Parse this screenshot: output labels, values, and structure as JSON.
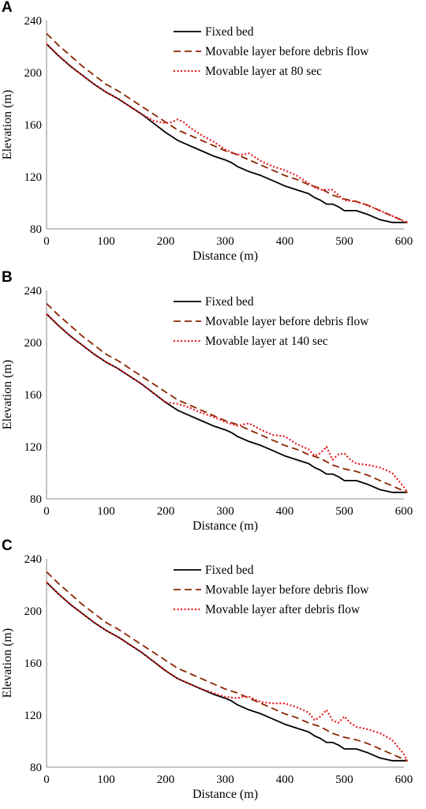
{
  "chart_data": [
    {
      "panel": "A",
      "type": "line",
      "xlabel": "Distance (m)",
      "ylabel": "Elevation (m)",
      "xlim": [
        0,
        600
      ],
      "ylim": [
        80,
        240
      ],
      "xticks": [
        0,
        100,
        200,
        300,
        400,
        500,
        600
      ],
      "yticks": [
        80,
        120,
        160,
        200,
        240
      ],
      "legend_position": "top-right",
      "grid": false,
      "series": [
        {
          "name": "Fixed bed",
          "color": "#000000",
          "style": "solid",
          "x": [
            0,
            20,
            40,
            60,
            80,
            100,
            120,
            140,
            160,
            180,
            200,
            220,
            240,
            260,
            280,
            300,
            310,
            320,
            340,
            360,
            380,
            400,
            420,
            440,
            450,
            460,
            470,
            480,
            490,
            500,
            520,
            540,
            560,
            580,
            600,
            606
          ],
          "y": [
            222,
            213,
            205,
            198,
            191,
            185,
            180,
            174,
            168,
            161,
            154,
            148,
            144,
            140,
            136,
            133,
            131,
            128,
            124,
            121,
            117,
            113,
            110,
            107,
            104,
            102,
            99,
            99,
            97,
            94,
            94,
            91,
            87,
            85,
            85,
            85
          ]
        },
        {
          "name": "Movable layer before debris flow",
          "color": "#8B2500",
          "style": "dashed",
          "x": [
            0,
            20,
            40,
            60,
            80,
            100,
            120,
            140,
            160,
            180,
            200,
            220,
            240,
            260,
            280,
            300,
            320,
            340,
            360,
            380,
            400,
            420,
            440,
            460,
            480,
            500,
            520,
            540,
            560,
            580,
            600,
            606
          ],
          "y": [
            230,
            221,
            213,
            205,
            198,
            191,
            186,
            180,
            174,
            168,
            162,
            156,
            152,
            148,
            144,
            140,
            137,
            133,
            129,
            125,
            121,
            118,
            114,
            111,
            106,
            103,
            101,
            98,
            94,
            90,
            86,
            85
          ]
        },
        {
          "name": "Movable layer at 80 sec",
          "color": "#e8191e",
          "style": "dotted",
          "x": [
            0,
            20,
            40,
            60,
            80,
            100,
            120,
            140,
            160,
            180,
            200,
            210,
            220,
            230,
            240,
            260,
            280,
            300,
            320,
            330,
            340,
            350,
            360,
            380,
            400,
            420,
            430,
            440,
            450,
            460,
            470,
            480,
            490,
            500,
            520,
            540,
            560,
            580,
            600,
            606
          ],
          "y": [
            222,
            213,
            205,
            198,
            191,
            185,
            180,
            174,
            168,
            163,
            161,
            162,
            164,
            162,
            158,
            152,
            147,
            141,
            137,
            137,
            138,
            135,
            132,
            128,
            125,
            121,
            118,
            115,
            112,
            110,
            110,
            110,
            106,
            102,
            101,
            98,
            94,
            90,
            86,
            85
          ]
        }
      ]
    },
    {
      "panel": "B",
      "type": "line",
      "xlabel": "Distance (m)",
      "ylabel": "Elevation (m)",
      "xlim": [
        0,
        600
      ],
      "ylim": [
        80,
        240
      ],
      "xticks": [
        0,
        100,
        200,
        300,
        400,
        500,
        600
      ],
      "yticks": [
        80,
        120,
        160,
        200,
        240
      ],
      "legend_position": "top-right",
      "grid": false,
      "series": [
        {
          "name": "Fixed bed",
          "color": "#000000",
          "style": "solid",
          "x": [
            0,
            20,
            40,
            60,
            80,
            100,
            120,
            140,
            160,
            180,
            200,
            220,
            240,
            260,
            280,
            300,
            310,
            320,
            340,
            360,
            380,
            400,
            420,
            440,
            450,
            460,
            470,
            480,
            490,
            500,
            520,
            540,
            560,
            580,
            600,
            606
          ],
          "y": [
            222,
            213,
            205,
            198,
            191,
            185,
            180,
            174,
            168,
            161,
            154,
            148,
            144,
            140,
            136,
            133,
            131,
            128,
            124,
            121,
            117,
            113,
            110,
            107,
            104,
            102,
            99,
            99,
            97,
            94,
            94,
            91,
            87,
            85,
            85,
            85
          ]
        },
        {
          "name": "Movable layer before debris flow",
          "color": "#8B2500",
          "style": "dashed",
          "x": [
            0,
            20,
            40,
            60,
            80,
            100,
            120,
            140,
            160,
            180,
            200,
            220,
            240,
            260,
            280,
            300,
            320,
            340,
            360,
            380,
            400,
            420,
            440,
            460,
            480,
            500,
            520,
            540,
            560,
            580,
            600,
            606
          ],
          "y": [
            230,
            221,
            213,
            205,
            198,
            191,
            186,
            180,
            174,
            168,
            162,
            156,
            152,
            148,
            144,
            140,
            137,
            133,
            129,
            125,
            121,
            118,
            114,
            111,
            106,
            103,
            101,
            98,
            94,
            90,
            86,
            85
          ]
        },
        {
          "name": "Movable layer at 140 sec",
          "color": "#e8191e",
          "style": "dotted",
          "x": [
            0,
            20,
            40,
            60,
            80,
            100,
            120,
            140,
            160,
            180,
            200,
            220,
            240,
            260,
            280,
            300,
            320,
            330,
            340,
            360,
            380,
            400,
            420,
            440,
            450,
            460,
            470,
            480,
            490,
            500,
            510,
            520,
            540,
            560,
            580,
            600,
            606
          ],
          "y": [
            222,
            213,
            205,
            198,
            191,
            185,
            180,
            174,
            168,
            161,
            154,
            153,
            150,
            146,
            143,
            139,
            136,
            137,
            138,
            133,
            129,
            128,
            122,
            118,
            113,
            115,
            120,
            110,
            114,
            115,
            110,
            107,
            106,
            104,
            100,
            89,
            85
          ]
        }
      ]
    },
    {
      "panel": "C",
      "type": "line",
      "xlabel": "Distance (m)",
      "ylabel": "Elevation (m)",
      "xlim": [
        0,
        600
      ],
      "ylim": [
        80,
        240
      ],
      "xticks": [
        0,
        100,
        200,
        300,
        400,
        500,
        600
      ],
      "yticks": [
        80,
        120,
        160,
        200,
        240
      ],
      "legend_position": "top-right",
      "grid": false,
      "series": [
        {
          "name": "Fixed bed",
          "color": "#000000",
          "style": "solid",
          "x": [
            0,
            20,
            40,
            60,
            80,
            100,
            120,
            140,
            160,
            180,
            200,
            220,
            240,
            260,
            280,
            300,
            310,
            320,
            340,
            360,
            380,
            400,
            420,
            440,
            450,
            460,
            470,
            480,
            490,
            500,
            520,
            540,
            560,
            580,
            600,
            606
          ],
          "y": [
            222,
            213,
            205,
            198,
            191,
            185,
            180,
            174,
            168,
            161,
            154,
            148,
            144,
            140,
            136,
            133,
            131,
            128,
            124,
            121,
            117,
            113,
            110,
            107,
            104,
            102,
            99,
            99,
            97,
            94,
            94,
            91,
            87,
            85,
            85,
            85
          ]
        },
        {
          "name": "Movable layer before debris flow",
          "color": "#8B2500",
          "style": "dashed",
          "x": [
            0,
            20,
            40,
            60,
            80,
            100,
            120,
            140,
            160,
            180,
            200,
            220,
            240,
            260,
            280,
            300,
            320,
            340,
            360,
            380,
            400,
            420,
            440,
            460,
            480,
            500,
            520,
            540,
            560,
            580,
            600,
            606
          ],
          "y": [
            230,
            221,
            213,
            205,
            198,
            191,
            186,
            180,
            174,
            168,
            162,
            156,
            152,
            148,
            144,
            140,
            137,
            133,
            129,
            125,
            121,
            118,
            114,
            111,
            106,
            103,
            101,
            98,
            94,
            90,
            86,
            85
          ]
        },
        {
          "name": "Movable layer after debris flow",
          "color": "#e8191e",
          "style": "dotted",
          "x": [
            0,
            20,
            40,
            60,
            80,
            100,
            120,
            140,
            160,
            180,
            200,
            220,
            240,
            260,
            280,
            300,
            320,
            330,
            340,
            360,
            380,
            400,
            420,
            440,
            450,
            460,
            470,
            480,
            490,
            500,
            510,
            520,
            540,
            560,
            580,
            600,
            606
          ],
          "y": [
            222,
            213,
            205,
            198,
            191,
            185,
            180,
            174,
            168,
            161,
            154,
            148,
            144,
            140,
            137,
            134,
            133,
            134,
            134,
            130,
            129,
            129,
            126,
            122,
            116,
            119,
            124,
            116,
            114,
            119,
            114,
            111,
            109,
            106,
            101,
            90,
            85
          ]
        }
      ]
    }
  ]
}
